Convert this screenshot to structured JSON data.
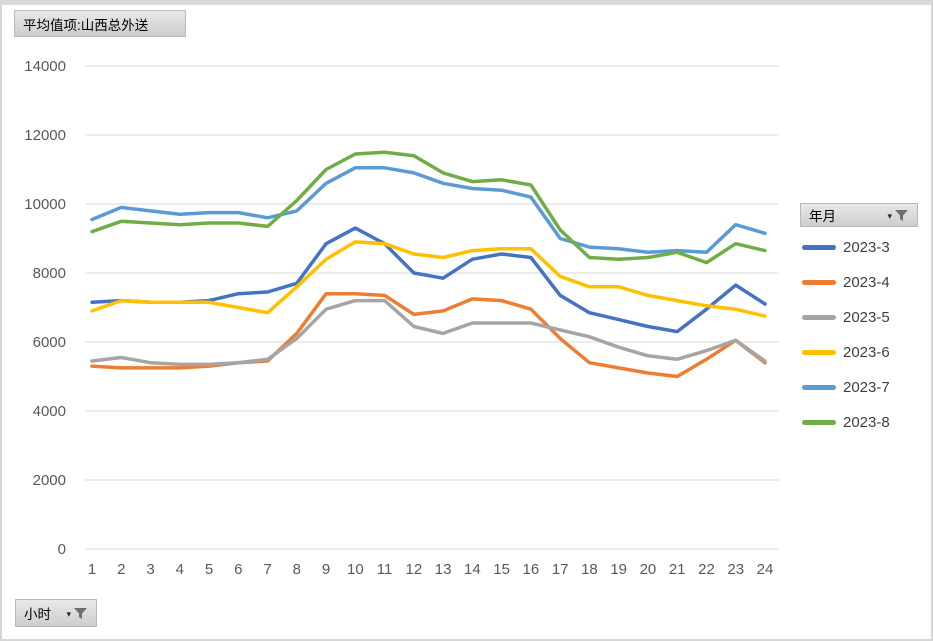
{
  "buttons": {
    "values_field": "平均值项:山西总外送",
    "axis_field": "小时",
    "legend_field": "年月"
  },
  "legend": {
    "field_label": "年月",
    "position": "right",
    "items": [
      {
        "label": "2023-3",
        "color": "#4472C4"
      },
      {
        "label": "2023-4",
        "color": "#ED7D31"
      },
      {
        "label": "2023-5",
        "color": "#A5A5A5"
      },
      {
        "label": "2023-6",
        "color": "#FFC000"
      },
      {
        "label": "2023-7",
        "color": "#5B9BD5"
      },
      {
        "label": "2023-8",
        "color": "#70AD47"
      }
    ]
  },
  "axis": {
    "y_tick_labels": [
      "0",
      "2000",
      "4000",
      "6000",
      "8000",
      "10000",
      "12000",
      "14000"
    ],
    "x_tick_labels": [
      "1",
      "2",
      "3",
      "4",
      "5",
      "6",
      "7",
      "8",
      "9",
      "10",
      "11",
      "12",
      "13",
      "14",
      "15",
      "16",
      "17",
      "18",
      "19",
      "20",
      "21",
      "22",
      "23",
      "24"
    ],
    "tick_color": "#595959",
    "gridline_color": "#d9d9d9"
  },
  "chart_data": {
    "type": "line",
    "title": "平均值项:山西总外送",
    "xlabel": "小时",
    "ylabel": "",
    "legend_title": "年月",
    "legend_position": "right",
    "grid": true,
    "ylim": [
      0,
      14000
    ],
    "yticks": [
      0,
      2000,
      4000,
      6000,
      8000,
      10000,
      12000,
      14000
    ],
    "x": [
      1,
      2,
      3,
      4,
      5,
      6,
      7,
      8,
      9,
      10,
      11,
      12,
      13,
      14,
      15,
      16,
      17,
      18,
      19,
      20,
      21,
      22,
      23,
      24
    ],
    "series": [
      {
        "name": "2023-3",
        "color": "#4472C4",
        "values": [
          7150,
          7200,
          7150,
          7150,
          7200,
          7400,
          7450,
          7700,
          8850,
          9300,
          8850,
          8000,
          7850,
          8400,
          8550,
          8450,
          7350,
          6850,
          6650,
          6450,
          6300,
          6950,
          7650,
          7100
        ]
      },
      {
        "name": "2023-4",
        "color": "#ED7D31",
        "values": [
          5300,
          5250,
          5250,
          5250,
          5300,
          5400,
          5450,
          6250,
          7400,
          7400,
          7350,
          6800,
          6900,
          7250,
          7200,
          6950,
          6100,
          5400,
          5250,
          5100,
          5000,
          5500,
          6050,
          5400
        ]
      },
      {
        "name": "2023-5",
        "color": "#A5A5A5",
        "values": [
          5450,
          5550,
          5400,
          5350,
          5350,
          5400,
          5500,
          6100,
          6950,
          7200,
          7200,
          6450,
          6250,
          6550,
          6550,
          6550,
          6350,
          6150,
          5850,
          5600,
          5500,
          5750,
          6050,
          5450
        ]
      },
      {
        "name": "2023-6",
        "color": "#FFC000",
        "values": [
          6900,
          7200,
          7150,
          7150,
          7150,
          7000,
          6850,
          7600,
          8400,
          8900,
          8850,
          8550,
          8450,
          8650,
          8700,
          8700,
          7900,
          7600,
          7600,
          7350,
          7200,
          7050,
          6950,
          6750
        ]
      },
      {
        "name": "2023-7",
        "color": "#5B9BD5",
        "values": [
          9550,
          9900,
          9800,
          9700,
          9750,
          9750,
          9600,
          9800,
          10600,
          11050,
          11050,
          10900,
          10600,
          10450,
          10400,
          10200,
          9000,
          8750,
          8700,
          8600,
          8650,
          8600,
          9400,
          9150
        ]
      },
      {
        "name": "2023-8",
        "color": "#70AD47",
        "values": [
          9200,
          9500,
          9450,
          9400,
          9450,
          9450,
          9350,
          10100,
          11000,
          11450,
          11500,
          11400,
          10900,
          10650,
          10700,
          10550,
          9250,
          8450,
          8400,
          8450,
          8600,
          8300,
          8850,
          8650
        ]
      }
    ]
  }
}
